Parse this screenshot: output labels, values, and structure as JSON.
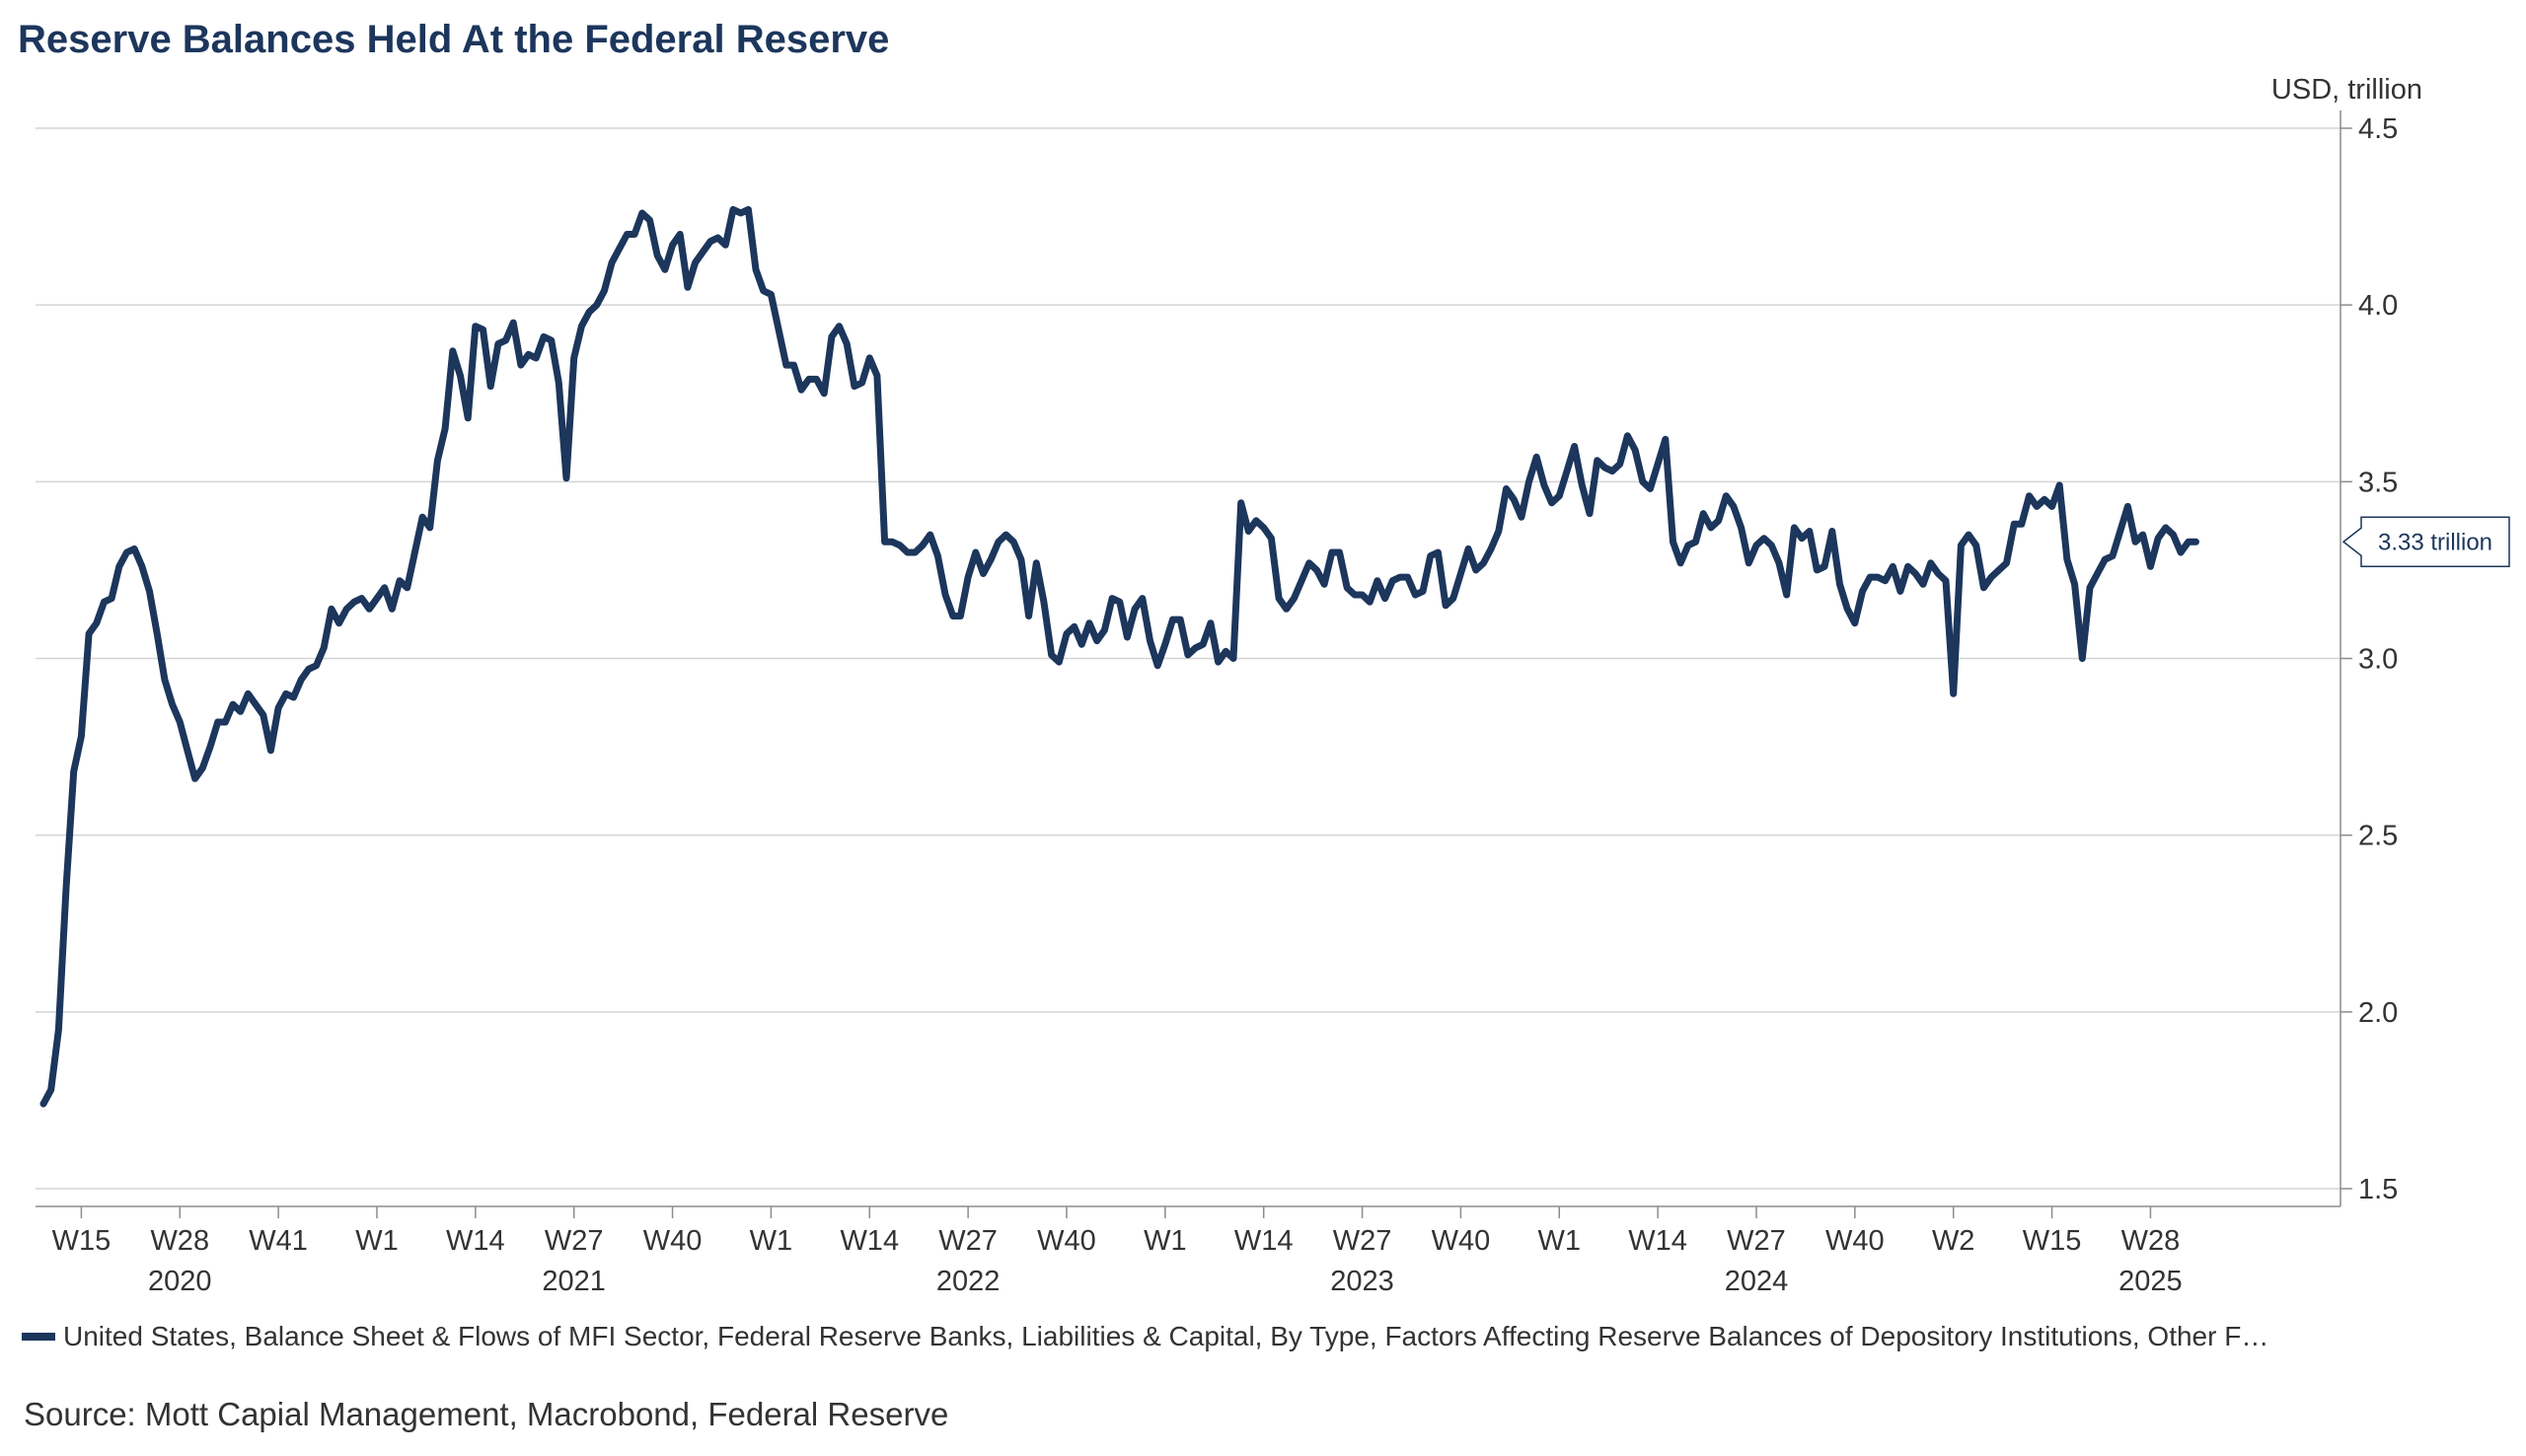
{
  "title": "Reserve Balances Held At the Federal Reserve",
  "legend": "United States, Balance Sheet & Flows of MFI Sector, Federal Reserve Banks, Liabilities & Capital, By Type, Factors Affecting Reserve Balances of Depository Institutions, Other F…",
  "source": "Source: Mott Capial Management, Macrobond, Federal Reserve",
  "colors": {
    "line": "#1c365c",
    "grid": "#d4d4d4",
    "axis": "#8c8c8c",
    "text": "#333333"
  },
  "chart_data": {
    "type": "line",
    "unit_label": "USD, trillion",
    "ylim": [
      1.5,
      4.5
    ],
    "yticks": [
      1.5,
      2.0,
      2.5,
      3.0,
      3.5,
      4.0,
      4.5
    ],
    "ytick_labels": [
      "1.5",
      "2.0",
      "2.5",
      "3.0",
      "3.5",
      "4.0",
      "4.5"
    ],
    "xlim": [
      0,
      295
    ],
    "xticks": [
      {
        "pos": 5,
        "week": "W15"
      },
      {
        "pos": 18,
        "week": "W28",
        "year": "2020"
      },
      {
        "pos": 31,
        "week": "W41"
      },
      {
        "pos": 44,
        "week": "W1"
      },
      {
        "pos": 57,
        "week": "W14"
      },
      {
        "pos": 70,
        "week": "W27",
        "year": "2021"
      },
      {
        "pos": 83,
        "week": "W40"
      },
      {
        "pos": 96,
        "week": "W1"
      },
      {
        "pos": 109,
        "week": "W14"
      },
      {
        "pos": 122,
        "week": "W27",
        "year": "2022"
      },
      {
        "pos": 135,
        "week": "W40"
      },
      {
        "pos": 148,
        "week": "W1"
      },
      {
        "pos": 161,
        "week": "W14"
      },
      {
        "pos": 174,
        "week": "W27",
        "year": "2023"
      },
      {
        "pos": 187,
        "week": "W40"
      },
      {
        "pos": 200,
        "week": "W1"
      },
      {
        "pos": 213,
        "week": "W14"
      },
      {
        "pos": 226,
        "week": "W27",
        "year": "2024"
      },
      {
        "pos": 239,
        "week": "W40"
      },
      {
        "pos": 252,
        "week": "W2"
      },
      {
        "pos": 265,
        "week": "W15"
      },
      {
        "pos": 278,
        "week": "W28",
        "year": "2025"
      }
    ],
    "last_value_label": "3.33 trillion",
    "series": [
      {
        "name": "United States, Balance Sheet & Flows of MFI Sector, Federal Reserve Banks, Liabilities & Capital, By Type, Factors Affecting Reserve Balances of Depository Institutions, Other F…",
        "points": [
          [
            0,
            1.74
          ],
          [
            1,
            1.78
          ],
          [
            2,
            1.95
          ],
          [
            3,
            2.35
          ],
          [
            4,
            2.68
          ],
          [
            5,
            2.78
          ],
          [
            6,
            3.07
          ],
          [
            7,
            3.1
          ],
          [
            8,
            3.16
          ],
          [
            9,
            3.17
          ],
          [
            10,
            3.26
          ],
          [
            11,
            3.3
          ],
          [
            12,
            3.31
          ],
          [
            13,
            3.26
          ],
          [
            14,
            3.19
          ],
          [
            15,
            3.07
          ],
          [
            16,
            2.94
          ],
          [
            17,
            2.87
          ],
          [
            18,
            2.82
          ],
          [
            19,
            2.74
          ],
          [
            20,
            2.66
          ],
          [
            21,
            2.69
          ],
          [
            22,
            2.75
          ],
          [
            23,
            2.82
          ],
          [
            24,
            2.82
          ],
          [
            25,
            2.87
          ],
          [
            26,
            2.85
          ],
          [
            27,
            2.9
          ],
          [
            28,
            2.87
          ],
          [
            29,
            2.84
          ],
          [
            30,
            2.74
          ],
          [
            31,
            2.86
          ],
          [
            32,
            2.9
          ],
          [
            33,
            2.89
          ],
          [
            34,
            2.94
          ],
          [
            35,
            2.97
          ],
          [
            36,
            2.98
          ],
          [
            37,
            3.03
          ],
          [
            38,
            3.14
          ],
          [
            39,
            3.1
          ],
          [
            40,
            3.14
          ],
          [
            41,
            3.16
          ],
          [
            42,
            3.17
          ],
          [
            43,
            3.14
          ],
          [
            44,
            3.17
          ],
          [
            45,
            3.2
          ],
          [
            46,
            3.14
          ],
          [
            47,
            3.22
          ],
          [
            48,
            3.2
          ],
          [
            49,
            3.3
          ],
          [
            50,
            3.4
          ],
          [
            51,
            3.37
          ],
          [
            52,
            3.56
          ],
          [
            53,
            3.65
          ],
          [
            54,
            3.87
          ],
          [
            55,
            3.8
          ],
          [
            56,
            3.68
          ],
          [
            57,
            3.94
          ],
          [
            58,
            3.93
          ],
          [
            59,
            3.77
          ],
          [
            60,
            3.89
          ],
          [
            61,
            3.9
          ],
          [
            62,
            3.95
          ],
          [
            63,
            3.83
          ],
          [
            64,
            3.86
          ],
          [
            65,
            3.85
          ],
          [
            66,
            3.91
          ],
          [
            67,
            3.9
          ],
          [
            68,
            3.78
          ],
          [
            69,
            3.51
          ],
          [
            70,
            3.85
          ],
          [
            71,
            3.94
          ],
          [
            72,
            3.98
          ],
          [
            73,
            4.0
          ],
          [
            74,
            4.04
          ],
          [
            75,
            4.12
          ],
          [
            76,
            4.16
          ],
          [
            77,
            4.2
          ],
          [
            78,
            4.2
          ],
          [
            79,
            4.26
          ],
          [
            80,
            4.24
          ],
          [
            81,
            4.14
          ],
          [
            82,
            4.1
          ],
          [
            83,
            4.17
          ],
          [
            84,
            4.2
          ],
          [
            85,
            4.05
          ],
          [
            86,
            4.12
          ],
          [
            87,
            4.15
          ],
          [
            88,
            4.18
          ],
          [
            89,
            4.19
          ],
          [
            90,
            4.17
          ],
          [
            91,
            4.27
          ],
          [
            92,
            4.26
          ],
          [
            93,
            4.27
          ],
          [
            94,
            4.1
          ],
          [
            95,
            4.04
          ],
          [
            96,
            4.03
          ],
          [
            97,
            3.93
          ],
          [
            98,
            3.83
          ],
          [
            99,
            3.83
          ],
          [
            100,
            3.76
          ],
          [
            101,
            3.79
          ],
          [
            102,
            3.79
          ],
          [
            103,
            3.75
          ],
          [
            104,
            3.91
          ],
          [
            105,
            3.94
          ],
          [
            106,
            3.89
          ],
          [
            107,
            3.77
          ],
          [
            108,
            3.78
          ],
          [
            109,
            3.85
          ],
          [
            110,
            3.8
          ],
          [
            111,
            3.33
          ],
          [
            112,
            3.33
          ],
          [
            113,
            3.32
          ],
          [
            114,
            3.3
          ],
          [
            115,
            3.3
          ],
          [
            116,
            3.32
          ],
          [
            117,
            3.35
          ],
          [
            118,
            3.29
          ],
          [
            119,
            3.18
          ],
          [
            120,
            3.12
          ],
          [
            121,
            3.12
          ],
          [
            122,
            3.23
          ],
          [
            123,
            3.3
          ],
          [
            124,
            3.24
          ],
          [
            125,
            3.28
          ],
          [
            126,
            3.33
          ],
          [
            127,
            3.35
          ],
          [
            128,
            3.33
          ],
          [
            129,
            3.28
          ],
          [
            130,
            3.12
          ],
          [
            131,
            3.27
          ],
          [
            132,
            3.16
          ],
          [
            133,
            3.01
          ],
          [
            134,
            2.99
          ],
          [
            135,
            3.07
          ],
          [
            136,
            3.09
          ],
          [
            137,
            3.04
          ],
          [
            138,
            3.1
          ],
          [
            139,
            3.05
          ],
          [
            140,
            3.08
          ],
          [
            141,
            3.17
          ],
          [
            142,
            3.16
          ],
          [
            143,
            3.06
          ],
          [
            144,
            3.14
          ],
          [
            145,
            3.17
          ],
          [
            146,
            3.05
          ],
          [
            147,
            2.98
          ],
          [
            148,
            3.04
          ],
          [
            149,
            3.11
          ],
          [
            150,
            3.11
          ],
          [
            151,
            3.01
          ],
          [
            152,
            3.03
          ],
          [
            153,
            3.04
          ],
          [
            154,
            3.1
          ],
          [
            155,
            2.99
          ],
          [
            156,
            3.02
          ],
          [
            157,
            3.0
          ],
          [
            158,
            3.44
          ],
          [
            159,
            3.36
          ],
          [
            160,
            3.39
          ],
          [
            161,
            3.37
          ],
          [
            162,
            3.34
          ],
          [
            163,
            3.17
          ],
          [
            164,
            3.14
          ],
          [
            165,
            3.17
          ],
          [
            166,
            3.22
          ],
          [
            167,
            3.27
          ],
          [
            168,
            3.25
          ],
          [
            169,
            3.21
          ],
          [
            170,
            3.3
          ],
          [
            171,
            3.3
          ],
          [
            172,
            3.2
          ],
          [
            173,
            3.18
          ],
          [
            174,
            3.18
          ],
          [
            175,
            3.16
          ],
          [
            176,
            3.22
          ],
          [
            177,
            3.17
          ],
          [
            178,
            3.22
          ],
          [
            179,
            3.23
          ],
          [
            180,
            3.23
          ],
          [
            181,
            3.18
          ],
          [
            182,
            3.19
          ],
          [
            183,
            3.29
          ],
          [
            184,
            3.3
          ],
          [
            185,
            3.15
          ],
          [
            186,
            3.17
          ],
          [
            187,
            3.24
          ],
          [
            188,
            3.31
          ],
          [
            189,
            3.25
          ],
          [
            190,
            3.27
          ],
          [
            191,
            3.31
          ],
          [
            192,
            3.36
          ],
          [
            193,
            3.48
          ],
          [
            194,
            3.45
          ],
          [
            195,
            3.4
          ],
          [
            196,
            3.5
          ],
          [
            197,
            3.57
          ],
          [
            198,
            3.49
          ],
          [
            199,
            3.44
          ],
          [
            200,
            3.46
          ],
          [
            201,
            3.53
          ],
          [
            202,
            3.6
          ],
          [
            203,
            3.49
          ],
          [
            204,
            3.41
          ],
          [
            205,
            3.56
          ],
          [
            206,
            3.54
          ],
          [
            207,
            3.53
          ],
          [
            208,
            3.55
          ],
          [
            209,
            3.63
          ],
          [
            210,
            3.59
          ],
          [
            211,
            3.5
          ],
          [
            212,
            3.48
          ],
          [
            213,
            3.55
          ],
          [
            214,
            3.62
          ],
          [
            215,
            3.33
          ],
          [
            216,
            3.27
          ],
          [
            217,
            3.32
          ],
          [
            218,
            3.33
          ],
          [
            219,
            3.41
          ],
          [
            220,
            3.37
          ],
          [
            221,
            3.39
          ],
          [
            222,
            3.46
          ],
          [
            223,
            3.43
          ],
          [
            224,
            3.37
          ],
          [
            225,
            3.27
          ],
          [
            226,
            3.32
          ],
          [
            227,
            3.34
          ],
          [
            228,
            3.32
          ],
          [
            229,
            3.27
          ],
          [
            230,
            3.18
          ],
          [
            231,
            3.37
          ],
          [
            232,
            3.34
          ],
          [
            233,
            3.36
          ],
          [
            234,
            3.25
          ],
          [
            235,
            3.26
          ],
          [
            236,
            3.36
          ],
          [
            237,
            3.21
          ],
          [
            238,
            3.14
          ],
          [
            239,
            3.1
          ],
          [
            240,
            3.19
          ],
          [
            241,
            3.23
          ],
          [
            242,
            3.23
          ],
          [
            243,
            3.22
          ],
          [
            244,
            3.26
          ],
          [
            245,
            3.19
          ],
          [
            246,
            3.26
          ],
          [
            247,
            3.24
          ],
          [
            248,
            3.21
          ],
          [
            249,
            3.27
          ],
          [
            250,
            3.24
          ],
          [
            251,
            3.22
          ],
          [
            252,
            2.9
          ],
          [
            253,
            3.32
          ],
          [
            254,
            3.35
          ],
          [
            255,
            3.32
          ],
          [
            256,
            3.2
          ],
          [
            257,
            3.23
          ],
          [
            258,
            3.25
          ],
          [
            259,
            3.27
          ],
          [
            260,
            3.38
          ],
          [
            261,
            3.38
          ],
          [
            262,
            3.46
          ],
          [
            263,
            3.43
          ],
          [
            264,
            3.45
          ],
          [
            265,
            3.43
          ],
          [
            266,
            3.49
          ],
          [
            267,
            3.28
          ],
          [
            268,
            3.21
          ],
          [
            269,
            3.0
          ],
          [
            270,
            3.2
          ],
          [
            271,
            3.24
          ],
          [
            272,
            3.28
          ],
          [
            273,
            3.29
          ],
          [
            274,
            3.36
          ],
          [
            275,
            3.43
          ],
          [
            276,
            3.33
          ],
          [
            277,
            3.35
          ],
          [
            278,
            3.26
          ],
          [
            279,
            3.34
          ],
          [
            280,
            3.37
          ],
          [
            281,
            3.35
          ],
          [
            282,
            3.3
          ],
          [
            283,
            3.33
          ],
          [
            284,
            3.33
          ]
        ]
      }
    ]
  }
}
